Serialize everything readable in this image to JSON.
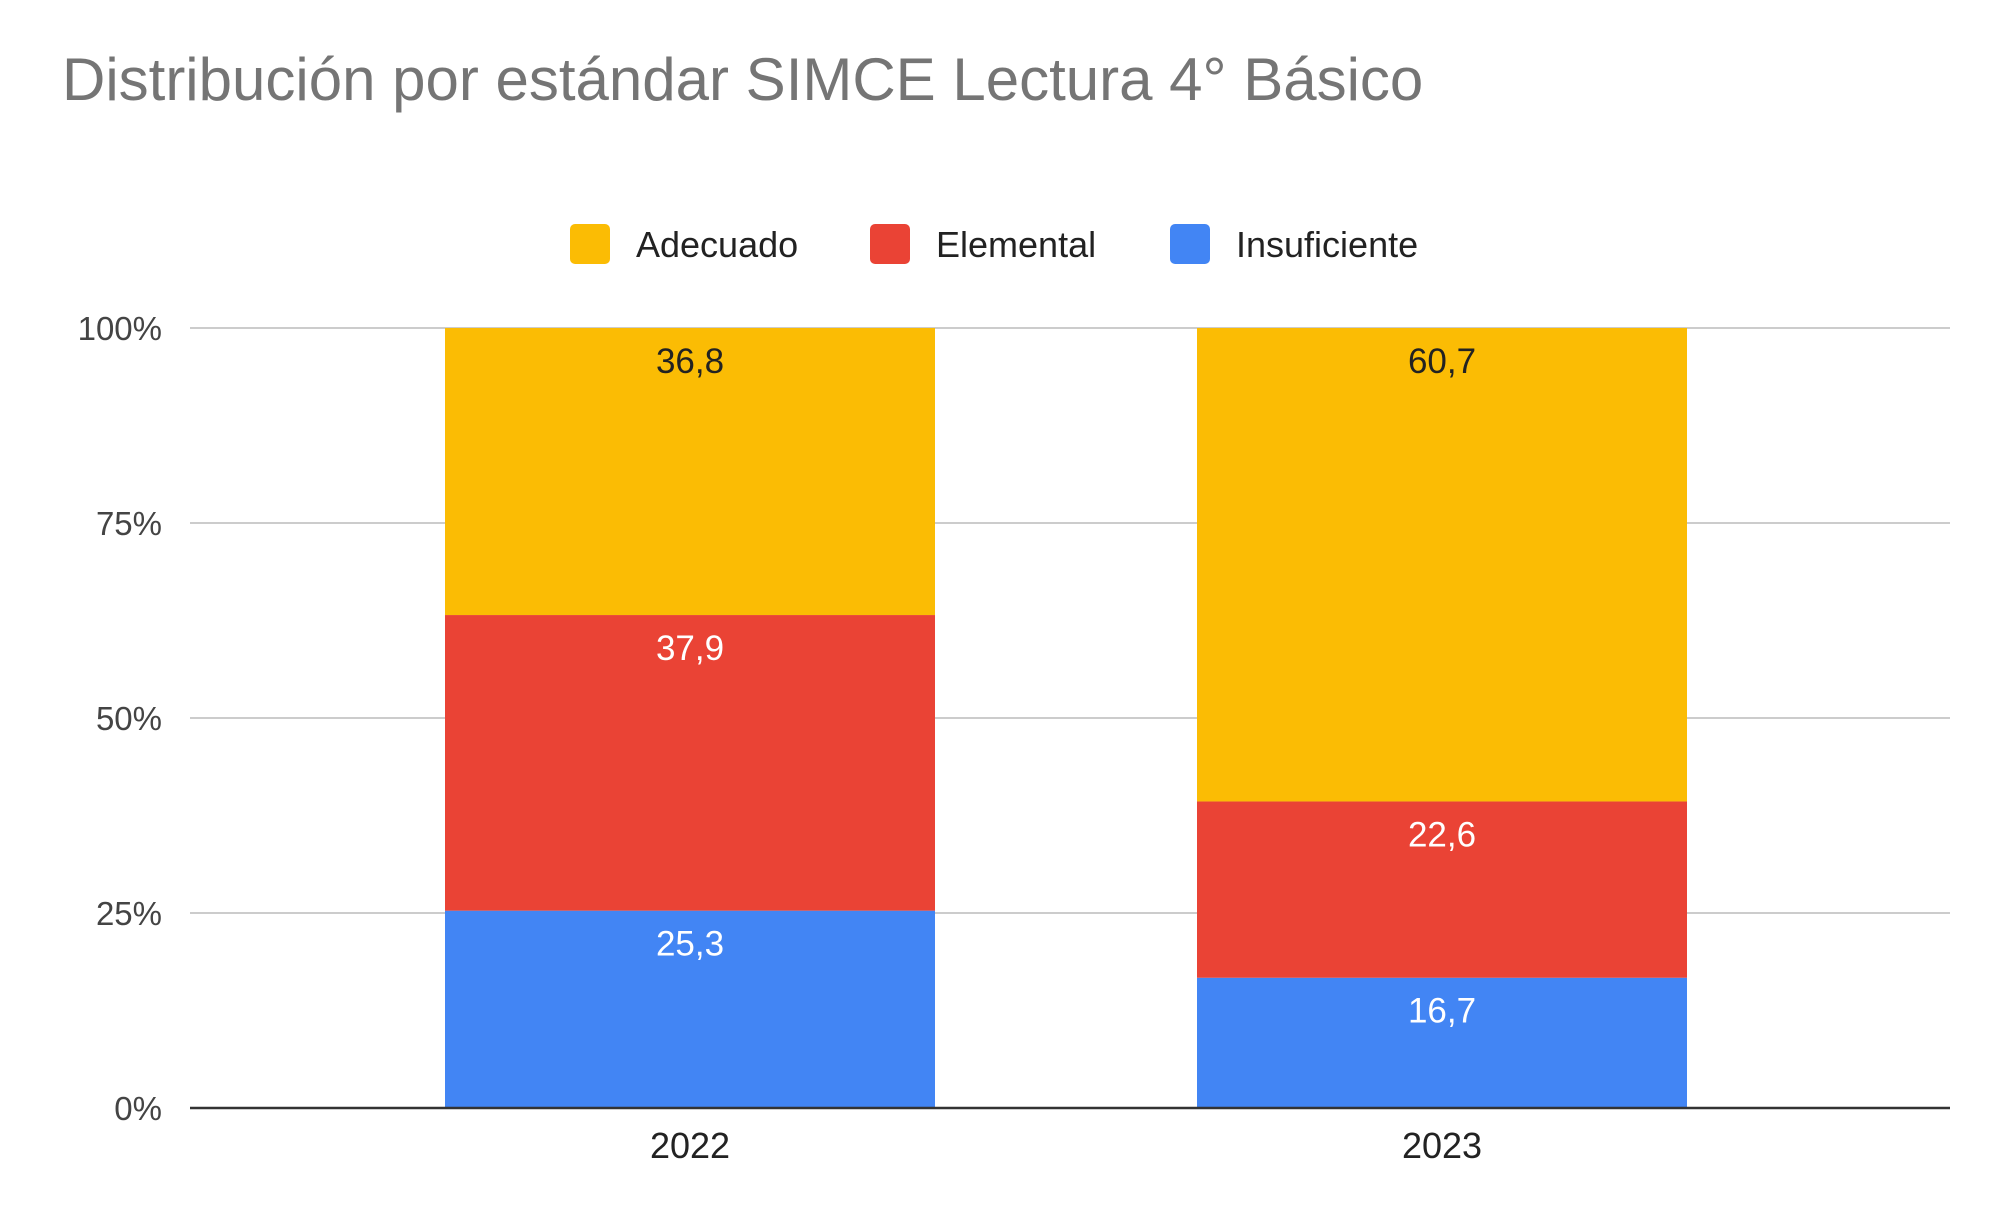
{
  "chart_data": {
    "type": "bar",
    "stacked": true,
    "title": "Distribución por estándar SIMCE Lectura 4° Básico",
    "categories": [
      "2022",
      "2023"
    ],
    "series": [
      {
        "name": "Insuficiente",
        "color": "#4285F4",
        "label_color": "#ffffff",
        "values": [
          25.3,
          16.7
        ],
        "labels": [
          "25,3",
          "16,7"
        ]
      },
      {
        "name": "Elemental",
        "color": "#EA4335",
        "label_color": "#ffffff",
        "values": [
          37.9,
          22.6
        ],
        "labels": [
          "37,9",
          "22,6"
        ]
      },
      {
        "name": "Adecuado",
        "color": "#FBBC04",
        "label_color": "#222222",
        "values": [
          36.8,
          60.7
        ],
        "labels": [
          "36,8",
          "60,7"
        ]
      }
    ],
    "legend_order": [
      "Adecuado",
      "Elemental",
      "Insuficiente"
    ],
    "legend_position": "top",
    "ylim": [
      0,
      100
    ],
    "yticks": [
      "0%",
      "25%",
      "50%",
      "75%",
      "100%"
    ],
    "ytick_values": [
      0,
      25,
      50,
      75,
      100
    ],
    "xlabel": "",
    "ylabel": "",
    "grid": true
  }
}
